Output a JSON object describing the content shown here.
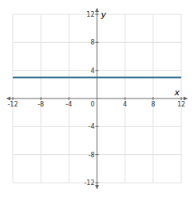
{
  "chart_data": {
    "type": "line",
    "xlabel": "x",
    "ylabel": "y",
    "x": [
      -12,
      12
    ],
    "values": [
      3,
      3
    ],
    "color": "#2e6e8e",
    "xlim": [
      -12,
      12
    ],
    "ylim": [
      -12,
      12
    ],
    "xticks": [
      -12,
      -8,
      -4,
      0,
      4,
      8,
      12
    ],
    "yticks": [
      -12,
      -8,
      -4,
      4,
      8,
      12
    ],
    "grid": true
  }
}
